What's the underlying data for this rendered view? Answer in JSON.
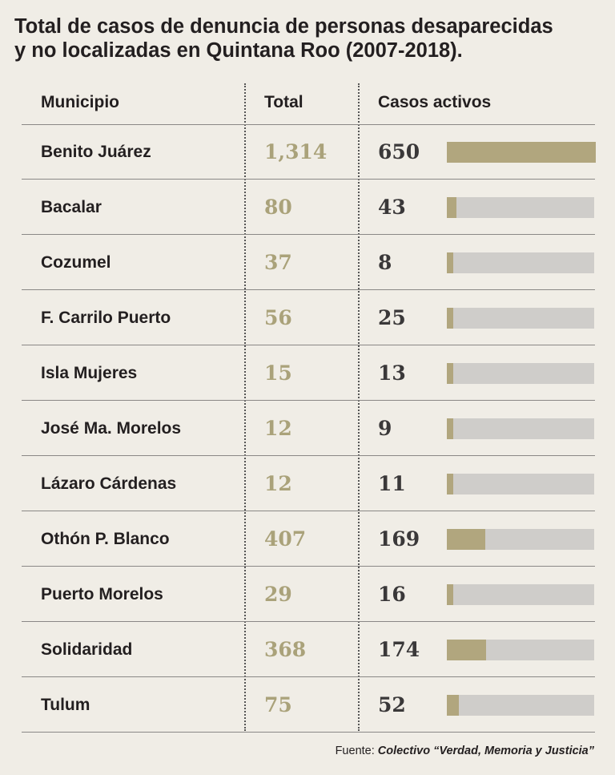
{
  "title": {
    "line1": "Total de casos de denuncia de personas desaparecidas",
    "line2": "y no localizadas en Quintana Roo (2007-2018)."
  },
  "headers": {
    "municipio": "Municipio",
    "total": "Total",
    "activos": "Casos activos"
  },
  "colors": {
    "total_text": "#aaa27a",
    "bar_fill": "#b1a67e",
    "bar_track": "#cfcdca",
    "background": "#f0ede6"
  },
  "chart_data": {
    "type": "table",
    "columns": [
      "Municipio",
      "Total",
      "Casos activos"
    ],
    "bar_max": 650,
    "rows": [
      {
        "municipio": "Benito Juárez",
        "total": "1,314",
        "activos": 650
      },
      {
        "municipio": "Bacalar",
        "total": "80",
        "activos": 43
      },
      {
        "municipio": "Cozumel",
        "total": "37",
        "activos": 8
      },
      {
        "municipio": "F. Carrilo Puerto",
        "total": "56",
        "activos": 25
      },
      {
        "municipio": "Isla Mujeres",
        "total": "15",
        "activos": 13
      },
      {
        "municipio": "José Ma. Morelos",
        "total": "12",
        "activos": 9
      },
      {
        "municipio": "Lázaro Cárdenas",
        "total": "12",
        "activos": 11
      },
      {
        "municipio": "Othón P. Blanco",
        "total": "407",
        "activos": 169
      },
      {
        "municipio": "Puerto Morelos",
        "total": "29",
        "activos": 16
      },
      {
        "municipio": "Solidaridad",
        "total": "368",
        "activos": 174
      },
      {
        "municipio": "Tulum",
        "total": "75",
        "activos": 52
      }
    ]
  },
  "source": {
    "label": "Fuente:",
    "name": "Colectivo  “Verdad, Memoria y Justicia”"
  }
}
